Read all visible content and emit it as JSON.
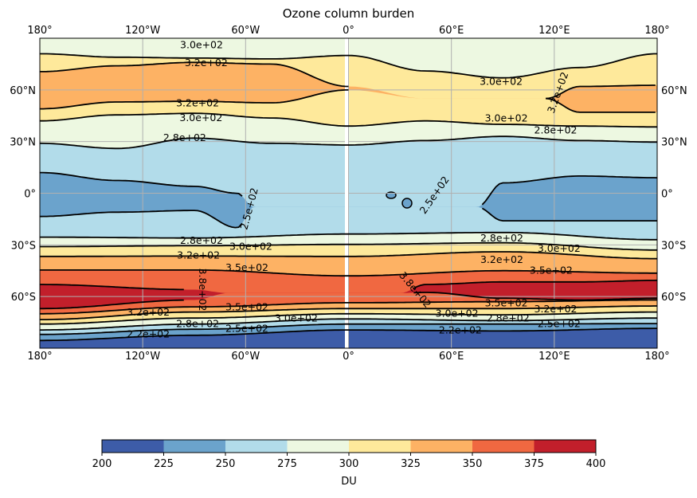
{
  "chart_data": {
    "type": "heatmap",
    "subtype": "filled-contour-map",
    "title": "Ozone column burden",
    "projection": "PlateCarree",
    "xlim": [
      -180,
      180
    ],
    "ylim": [
      -90,
      90
    ],
    "grid": true,
    "x_ticks": [
      {
        "value": -180,
        "label": "180°"
      },
      {
        "value": -120,
        "label": "120°W"
      },
      {
        "value": -60,
        "label": "60°W"
      },
      {
        "value": 0,
        "label": "0°"
      },
      {
        "value": 60,
        "label": "60°E"
      },
      {
        "value": 120,
        "label": "120°E"
      },
      {
        "value": 180,
        "label": "180°"
      }
    ],
    "y_ticks": [
      {
        "value": 60,
        "label": "60°N"
      },
      {
        "value": 30,
        "label": "30°N"
      },
      {
        "value": 0,
        "label": "0°"
      },
      {
        "value": -30,
        "label": "30°S"
      },
      {
        "value": -60,
        "label": "60°S"
      }
    ],
    "levels": [
      200,
      225,
      250,
      275,
      300,
      325,
      350,
      375,
      400
    ],
    "level_colors": [
      "#3d5ca8",
      "#6ba3cc",
      "#b2dcea",
      "#edf8e1",
      "#fee99b",
      "#fdb264",
      "#f06841",
      "#c21f2b"
    ],
    "bands": [
      {
        "range": [
          275,
          300
        ],
        "south_boundary": {
          "level": 300,
          "lons": [
            -180,
            -135,
            -90,
            -45,
            0,
            45,
            90,
            135,
            180
          ],
          "lats": [
            81,
            79,
            78.5,
            78,
            80,
            71,
            67,
            73,
            81
          ]
        },
        "line_segments": [
          [
            -180,
            180
          ]
        ]
      },
      {
        "range": [
          300,
          325
        ],
        "south_boundary": {
          "level": 325,
          "lons": [
            -180,
            -135,
            -90,
            -45,
            0,
            45,
            90,
            115,
            135,
            180
          ],
          "lats": [
            70.6,
            74,
            76,
            75,
            62,
            55,
            55,
            55,
            62,
            62.7
          ]
        },
        "line_segments": [
          [
            -180,
            0
          ],
          [
            115,
            180
          ]
        ]
      },
      {
        "range": [
          325,
          350
        ],
        "south_boundary": {
          "level": 325,
          "lons": [
            -180,
            -135,
            -90,
            -45,
            0,
            45,
            90,
            115,
            135,
            180
          ],
          "lats": [
            49,
            53,
            53.4,
            52.5,
            60,
            55,
            55,
            55,
            47,
            47
          ]
        },
        "line_segments": [
          [
            -180,
            0
          ],
          [
            115,
            180
          ]
        ]
      },
      {
        "range": [
          300,
          325
        ],
        "south_boundary": {
          "level": 300,
          "lons": [
            -180,
            -135,
            -90,
            -45,
            0,
            45,
            90,
            135,
            180
          ],
          "lats": [
            42,
            45.5,
            46.4,
            43.7,
            39,
            42,
            40,
            39,
            38.5
          ]
        },
        "line_segments": [
          [
            -180,
            180
          ]
        ]
      },
      {
        "range": [
          275,
          300
        ],
        "south_boundary": {
          "level": 275,
          "lons": [
            -180,
            -135,
            -90,
            -45,
            0,
            45,
            90,
            135,
            180
          ],
          "lats": [
            29,
            26,
            32,
            29,
            28,
            30.6,
            33,
            30.6,
            29.7
          ]
        },
        "line_segments": [
          [
            -180,
            180
          ]
        ]
      },
      {
        "range": [
          250,
          275
        ],
        "south_boundary": {
          "level": 250,
          "lons": [
            -180,
            -135,
            -90,
            -65,
            -55,
            0,
            75,
            90,
            135,
            180
          ],
          "lats": [
            12,
            7.4,
            4,
            0,
            -8,
            -8,
            -8,
            6,
            10,
            9
          ]
        },
        "line_segments": [
          [
            -180,
            -62
          ],
          [
            78,
            180
          ]
        ]
      },
      {
        "range": [
          225,
          250
        ],
        "south_boundary": {
          "level": 250,
          "lons": [
            -180,
            -135,
            -90,
            -65,
            -55,
            0,
            75,
            90,
            135,
            180
          ],
          "lats": [
            -13.5,
            -11,
            -10,
            -20,
            -8,
            -8,
            -8,
            -16,
            -16,
            -16
          ]
        },
        "line_segments": [
          [
            -180,
            -62
          ],
          [
            78,
            180
          ]
        ]
      },
      {
        "range": [
          250,
          275
        ],
        "south_boundary": {
          "level": 275,
          "lons": [
            -180,
            -90,
            0,
            90,
            180
          ],
          "lats": [
            -25.5,
            -26,
            -23.7,
            -22.8,
            -27
          ]
        },
        "line_segments": [
          [
            -180,
            180
          ]
        ]
      },
      {
        "range": [
          275,
          300
        ],
        "south_boundary": {
          "level": 300,
          "lons": [
            -180,
            -90,
            0,
            90,
            180
          ],
          "lats": [
            -31,
            -30.5,
            -29.7,
            -28.8,
            -33
          ]
        },
        "line_segments": [
          [
            -180,
            180
          ]
        ]
      },
      {
        "range": [
          300,
          325
        ],
        "south_boundary": {
          "level": 325,
          "lons": [
            -180,
            -90,
            0,
            90,
            180
          ],
          "lats": [
            -36.7,
            -36.5,
            -36.7,
            -34,
            -38
          ]
        },
        "line_segments": [
          [
            -180,
            180
          ]
        ]
      },
      {
        "range": [
          325,
          350
        ],
        "south_boundary": {
          "level": 350,
          "lons": [
            -180,
            -90,
            0,
            90,
            180
          ],
          "lats": [
            -44.6,
            -44.6,
            -48,
            -45,
            -46.4
          ]
        },
        "line_segments": [
          [
            -180,
            180
          ]
        ]
      },
      {
        "range": [
          350,
          375
        ],
        "south_boundary": {
          "level": 375,
          "lons": [
            -180,
            -90,
            -70,
            -45,
            0,
            30,
            45,
            90,
            135,
            180
          ],
          "lats": [
            -53,
            -56,
            -58,
            -58,
            -58,
            -58,
            -53,
            -51.5,
            -51.5,
            -50.6
          ]
        },
        "line_segments": [
          [
            -180,
            -95
          ],
          [
            38,
            180
          ]
        ]
      },
      {
        "range": [
          375,
          400
        ],
        "south_boundary": {
          "level": 375,
          "lons": [
            -180,
            -90,
            -70,
            -45,
            0,
            30,
            45,
            90,
            135,
            180
          ],
          "lats": [
            -67,
            -62,
            -58,
            -58,
            -58,
            -58,
            -57.6,
            -61,
            -62,
            -61
          ]
        },
        "line_segments": [
          [
            -180,
            -95
          ],
          [
            38,
            180
          ]
        ]
      },
      {
        "range": [
          350,
          375
        ],
        "south_boundary": {
          "level": 350,
          "lons": [
            -180,
            -90,
            0,
            90,
            180
          ],
          "lats": [
            -70,
            -66,
            -63.6,
            -63,
            -62
          ]
        },
        "line_segments": [
          [
            -180,
            180
          ]
        ]
      },
      {
        "range": [
          325,
          350
        ],
        "south_boundary": {
          "level": 325,
          "lons": [
            -180,
            -90,
            0,
            90,
            180
          ],
          "lats": [
            -73.4,
            -69,
            -67,
            -67,
            -65.5
          ]
        },
        "line_segments": [
          [
            -180,
            180
          ]
        ]
      },
      {
        "range": [
          300,
          325
        ],
        "south_boundary": {
          "level": 300,
          "lons": [
            -180,
            -90,
            0,
            90,
            180
          ],
          "lats": [
            -76,
            -72.5,
            -70,
            -70.6,
            -69
          ]
        },
        "line_segments": [
          [
            -180,
            180
          ]
        ]
      },
      {
        "range": [
          275,
          300
        ],
        "south_boundary": {
          "level": 275,
          "lons": [
            -180,
            -90,
            0,
            90,
            180
          ],
          "lats": [
            -79.4,
            -76,
            -73,
            -74,
            -72.5
          ]
        },
        "line_segments": [
          [
            -180,
            180
          ]
        ]
      },
      {
        "range": [
          250,
          275
        ],
        "south_boundary": {
          "level": 250,
          "lons": [
            -180,
            -90,
            0,
            90,
            180
          ],
          "lats": [
            -82,
            -79,
            -76,
            -76,
            -75.7
          ]
        },
        "line_segments": [
          [
            -180,
            180
          ]
        ]
      },
      {
        "range": [
          225,
          250
        ],
        "south_boundary": {
          "level": 225,
          "lons": [
            -180,
            -90,
            0,
            90,
            180
          ],
          "lats": [
            -85.5,
            -82.5,
            -79.4,
            -80,
            -78.5
          ]
        },
        "line_segments": [
          [
            -180,
            180
          ]
        ]
      },
      {
        "range": [
          200,
          225
        ],
        "south_boundary": null,
        "line_segments": []
      }
    ],
    "contour_labels": [
      {
        "text": "3.0e+02",
        "lon": -85.7,
        "lat": 86.4
      },
      {
        "text": "3.2e+02",
        "lon": -83,
        "lat": 76
      },
      {
        "text": "3.2e+02",
        "lon": -88,
        "lat": 52.5
      },
      {
        "text": "3.0e+02",
        "lon": -86,
        "lat": 44
      },
      {
        "text": "2.8e+02",
        "lon": -95.5,
        "lat": 32.5
      },
      {
        "text": "3.0e+02",
        "lon": 89,
        "lat": 65
      },
      {
        "text": "3.2e+02",
        "lon": 122,
        "lat": 58.5
      },
      {
        "text": "3.0e+02",
        "lon": 92,
        "lat": 43.7
      },
      {
        "text": "2.8e+02",
        "lon": 92,
        "lat": 36.7
      },
      {
        "text": "2.5e+02",
        "lon": -58,
        "lat": -9
      },
      {
        "text": "2.5e+02",
        "lon": 50,
        "lat": -1
      },
      {
        "text": "2.8e+02",
        "lon": -85.7,
        "lat": -27.4
      },
      {
        "text": "3.0e+02",
        "lon": -85.7,
        "lat": -30.7
      },
      {
        "text": "3.2e+02",
        "lon": -87.5,
        "lat": -35.8
      },
      {
        "text": "3.5e+02",
        "lon": -88,
        "lat": -43
      },
      {
        "text": "3.8e+02",
        "lon": -85,
        "lat": -56
      },
      {
        "text": "3.5e+02",
        "lon": -88,
        "lat": -66
      },
      {
        "text": "3.2e+02",
        "lon": -88,
        "lat": -69
      },
      {
        "text": "3.0e+02",
        "lon": -88,
        "lat": -72.5
      },
      {
        "text": "2.8e+02",
        "lon": -88,
        "lat": -75.7
      },
      {
        "text": "2.5e+02",
        "lon": -88,
        "lat": -78.5
      },
      {
        "text": "2.2e+02",
        "lon": -88,
        "lat": -81.7
      },
      {
        "text": "2.8e+02",
        "lon": 89.4,
        "lat": -26
      },
      {
        "text": "3.0e+02",
        "lon": 94,
        "lat": -32
      },
      {
        "text": "3.2e+02",
        "lon": 89.4,
        "lat": -38.5
      },
      {
        "text": "3.5e+02",
        "lon": 89.4,
        "lat": -44.6
      },
      {
        "text": "3.8e+02",
        "lon": 39,
        "lat": -56
      },
      {
        "text": "3.5e+02",
        "lon": 92,
        "lat": -63.6
      },
      {
        "text": "3.2e+02",
        "lon": 92,
        "lat": -67
      },
      {
        "text": "3.0e+02",
        "lon": 92,
        "lat": -69.7
      },
      {
        "text": "2.8e+02",
        "lon": 93,
        "lat": -72.5
      },
      {
        "text": "2.5e+02",
        "lon": 94,
        "lat": -75.7
      },
      {
        "text": "2.2e+02",
        "lon": 94,
        "lat": -79.4
      }
    ],
    "colorbar": {
      "orientation": "horizontal",
      "placement": "bottom",
      "label": "DU",
      "ticks": [
        "200",
        "225",
        "250",
        "275",
        "300",
        "325",
        "350",
        "375",
        "400"
      ]
    }
  }
}
